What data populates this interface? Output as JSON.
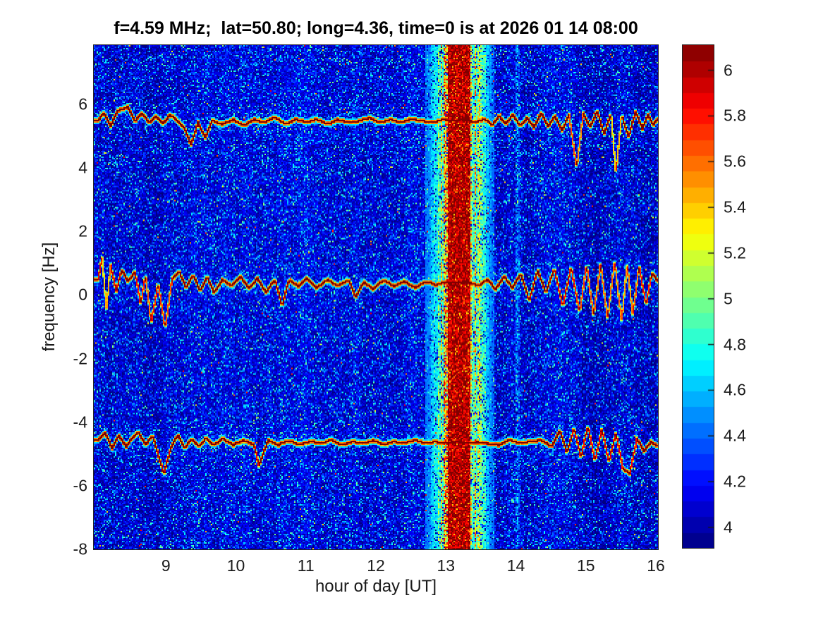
{
  "chart_data": {
    "type": "heatmap",
    "title": "f=4.59 MHz;  lat=50.80; long=4.36, time=0 is at 2026 01 14 08:00",
    "xlabel": "hour of day [UT]",
    "ylabel": "frequency [Hz]",
    "x_range": [
      7.97,
      16.03
    ],
    "y_range": [
      -8,
      7.86
    ],
    "x_axis": {
      "values": [
        9,
        10,
        11,
        12,
        13,
        14,
        15,
        16
      ],
      "labels": [
        "9",
        "10",
        "11",
        "12",
        "13",
        "14",
        "15",
        "16"
      ]
    },
    "y_axis": {
      "values": [
        6,
        4,
        2,
        0,
        -2,
        -4,
        -6,
        -8
      ],
      "labels": [
        "6",
        "4",
        "2",
        "0",
        "-2",
        "-4",
        "-6",
        "-8"
      ]
    },
    "colorbar": {
      "range": [
        3.91,
        6.11
      ],
      "levels": 32,
      "colormap": "jet",
      "tick_values": [
        4,
        4.2,
        4.4,
        4.6,
        4.8,
        5,
        5.2,
        5.4,
        5.6,
        5.8,
        6
      ],
      "tick_labels": [
        "4",
        "4.2",
        "4.4",
        "4.6",
        "4.8",
        "5",
        "5.2",
        "5.4",
        "5.6",
        "5.8",
        "6"
      ]
    },
    "noise_floor": 4.0,
    "features": {
      "interference_band": {
        "center_hour": 13.18,
        "core_half_width_hours": 0.16,
        "fringe_half_width_hours": 0.45,
        "core_value": 6.0,
        "fringe_value": 5.2
      },
      "faint_vertical_line_hour": 14.02,
      "traces": [
        {
          "name": "upper-doppler-trace",
          "base_freq_hz": 5.55,
          "points": [
            [
              8.02,
              5.5
            ],
            [
              8.1,
              5.75
            ],
            [
              8.2,
              5.35
            ],
            [
              8.3,
              5.8
            ],
            [
              8.45,
              5.95
            ],
            [
              8.55,
              5.5
            ],
            [
              8.65,
              5.75
            ],
            [
              8.75,
              5.45
            ],
            [
              8.85,
              5.65
            ],
            [
              8.95,
              5.4
            ],
            [
              9.05,
              5.7
            ],
            [
              9.15,
              5.5
            ],
            [
              9.25,
              5.3
            ],
            [
              9.35,
              4.75
            ],
            [
              9.45,
              5.45
            ],
            [
              9.55,
              4.95
            ],
            [
              9.65,
              5.5
            ],
            [
              9.8,
              5.4
            ],
            [
              9.95,
              5.55
            ],
            [
              10.1,
              5.35
            ],
            [
              10.25,
              5.55
            ],
            [
              10.4,
              5.45
            ],
            [
              10.55,
              5.6
            ],
            [
              10.7,
              5.4
            ],
            [
              10.85,
              5.55
            ],
            [
              11.0,
              5.45
            ],
            [
              11.15,
              5.55
            ],
            [
              11.3,
              5.4
            ],
            [
              11.45,
              5.55
            ],
            [
              11.6,
              5.45
            ],
            [
              11.75,
              5.5
            ],
            [
              11.9,
              5.6
            ],
            [
              12.05,
              5.45
            ],
            [
              12.2,
              5.55
            ],
            [
              12.35,
              5.45
            ],
            [
              12.5,
              5.55
            ],
            [
              12.65,
              5.5
            ],
            [
              12.8,
              5.45
            ],
            [
              12.95,
              5.55
            ],
            [
              13.1,
              5.5
            ],
            [
              13.25,
              5.55
            ],
            [
              13.4,
              5.45
            ],
            [
              13.55,
              5.55
            ],
            [
              13.65,
              5.35
            ],
            [
              13.75,
              5.65
            ],
            [
              13.85,
              5.4
            ],
            [
              13.95,
              5.7
            ],
            [
              14.05,
              5.35
            ],
            [
              14.15,
              5.6
            ],
            [
              14.25,
              5.3
            ],
            [
              14.35,
              5.75
            ],
            [
              14.45,
              5.35
            ],
            [
              14.55,
              5.65
            ],
            [
              14.65,
              5.2
            ],
            [
              14.75,
              5.7
            ],
            [
              14.86,
              4.0
            ],
            [
              14.95,
              5.75
            ],
            [
              15.05,
              5.3
            ],
            [
              15.15,
              5.8
            ],
            [
              15.25,
              5.1
            ],
            [
              15.35,
              5.75
            ],
            [
              15.42,
              3.85
            ],
            [
              15.5,
              5.7
            ],
            [
              15.6,
              5.0
            ],
            [
              15.7,
              5.8
            ],
            [
              15.8,
              5.25
            ],
            [
              15.88,
              5.7
            ],
            [
              15.95,
              5.35
            ],
            [
              16.03,
              5.6
            ]
          ]
        },
        {
          "name": "center-doppler-trace",
          "base_freq_hz": 0.45,
          "points": [
            [
              8.02,
              0.5
            ],
            [
              8.08,
              1.2
            ],
            [
              8.14,
              -0.4
            ],
            [
              8.2,
              0.95
            ],
            [
              8.28,
              0.15
            ],
            [
              8.36,
              0.8
            ],
            [
              8.45,
              0.45
            ],
            [
              8.55,
              0.75
            ],
            [
              8.63,
              -0.25
            ],
            [
              8.7,
              0.65
            ],
            [
              8.78,
              -0.85
            ],
            [
              8.88,
              0.4
            ],
            [
              8.98,
              -1.05
            ],
            [
              9.08,
              0.55
            ],
            [
              9.18,
              0.75
            ],
            [
              9.28,
              0.25
            ],
            [
              9.38,
              0.65
            ],
            [
              9.48,
              0.15
            ],
            [
              9.58,
              0.6
            ],
            [
              9.68,
              0.1
            ],
            [
              9.8,
              0.5
            ],
            [
              9.92,
              0.3
            ],
            [
              10.05,
              0.6
            ],
            [
              10.18,
              0.25
            ],
            [
              10.3,
              0.55
            ],
            [
              10.42,
              0.1
            ],
            [
              10.55,
              0.5
            ],
            [
              10.65,
              -0.3
            ],
            [
              10.75,
              0.5
            ],
            [
              10.88,
              0.3
            ],
            [
              11.0,
              0.55
            ],
            [
              11.15,
              0.25
            ],
            [
              11.3,
              0.5
            ],
            [
              11.45,
              0.3
            ],
            [
              11.6,
              0.5
            ],
            [
              11.7,
              -0.05
            ],
            [
              11.82,
              0.45
            ],
            [
              11.95,
              0.2
            ],
            [
              12.1,
              0.5
            ],
            [
              12.25,
              0.3
            ],
            [
              12.4,
              0.45
            ],
            [
              12.55,
              0.25
            ],
            [
              12.7,
              0.45
            ],
            [
              12.85,
              0.35
            ],
            [
              13.0,
              0.45
            ],
            [
              13.15,
              0.4
            ],
            [
              13.3,
              0.45
            ],
            [
              13.45,
              0.3
            ],
            [
              13.58,
              0.5
            ],
            [
              13.7,
              0.2
            ],
            [
              13.82,
              0.6
            ],
            [
              13.94,
              0.25
            ],
            [
              14.06,
              0.7
            ],
            [
              14.18,
              -0.15
            ],
            [
              14.3,
              0.8
            ],
            [
              14.42,
              0.1
            ],
            [
              14.54,
              0.85
            ],
            [
              14.66,
              -0.35
            ],
            [
              14.78,
              0.9
            ],
            [
              14.9,
              -0.55
            ],
            [
              15.0,
              1.0
            ],
            [
              15.1,
              -0.65
            ],
            [
              15.2,
              1.05
            ],
            [
              15.3,
              -0.75
            ],
            [
              15.4,
              1.1
            ],
            [
              15.5,
              -0.8
            ],
            [
              15.58,
              1.0
            ],
            [
              15.66,
              -0.6
            ],
            [
              15.75,
              0.95
            ],
            [
              15.85,
              -0.3
            ],
            [
              15.93,
              0.7
            ],
            [
              16.03,
              0.45
            ]
          ]
        },
        {
          "name": "lower-doppler-trace",
          "base_freq_hz": -4.6,
          "points": [
            [
              8.02,
              -4.55
            ],
            [
              8.12,
              -4.3
            ],
            [
              8.22,
              -4.8
            ],
            [
              8.32,
              -4.4
            ],
            [
              8.42,
              -4.75
            ],
            [
              8.52,
              -4.45
            ],
            [
              8.6,
              -4.3
            ],
            [
              8.7,
              -4.7
            ],
            [
              8.8,
              -4.4
            ],
            [
              8.88,
              -5.0
            ],
            [
              8.96,
              -5.6
            ],
            [
              9.06,
              -4.8
            ],
            [
              9.16,
              -4.4
            ],
            [
              9.26,
              -4.8
            ],
            [
              9.36,
              -4.5
            ],
            [
              9.46,
              -4.75
            ],
            [
              9.56,
              -4.5
            ],
            [
              9.68,
              -4.7
            ],
            [
              9.8,
              -4.5
            ],
            [
              9.95,
              -4.7
            ],
            [
              10.1,
              -4.55
            ],
            [
              10.25,
              -4.7
            ],
            [
              10.32,
              -5.35
            ],
            [
              10.45,
              -4.55
            ],
            [
              10.6,
              -4.7
            ],
            [
              10.75,
              -4.55
            ],
            [
              10.9,
              -4.7
            ],
            [
              11.05,
              -4.6
            ],
            [
              11.2,
              -4.65
            ],
            [
              11.35,
              -4.55
            ],
            [
              11.5,
              -4.7
            ],
            [
              11.65,
              -4.6
            ],
            [
              11.8,
              -4.65
            ],
            [
              11.95,
              -4.55
            ],
            [
              12.1,
              -4.7
            ],
            [
              12.25,
              -4.6
            ],
            [
              12.4,
              -4.65
            ],
            [
              12.55,
              -4.55
            ],
            [
              12.7,
              -4.65
            ],
            [
              12.85,
              -4.6
            ],
            [
              13.0,
              -4.65
            ],
            [
              13.15,
              -4.6
            ],
            [
              13.3,
              -4.65
            ],
            [
              13.45,
              -4.6
            ],
            [
              13.6,
              -4.65
            ],
            [
              13.75,
              -4.7
            ],
            [
              13.9,
              -4.55
            ],
            [
              14.05,
              -4.65
            ],
            [
              14.2,
              -4.6
            ],
            [
              14.35,
              -4.55
            ],
            [
              14.5,
              -4.75
            ],
            [
              14.62,
              -4.25
            ],
            [
              14.72,
              -4.95
            ],
            [
              14.82,
              -4.15
            ],
            [
              14.92,
              -5.1
            ],
            [
              15.02,
              -4.1
            ],
            [
              15.12,
              -5.2
            ],
            [
              15.22,
              -4.2
            ],
            [
              15.32,
              -5.25
            ],
            [
              15.42,
              -4.3
            ],
            [
              15.52,
              -5.45
            ],
            [
              15.62,
              -5.6
            ],
            [
              15.72,
              -4.5
            ],
            [
              15.82,
              -4.9
            ],
            [
              15.92,
              -4.6
            ],
            [
              16.03,
              -4.75
            ]
          ]
        }
      ]
    }
  }
}
